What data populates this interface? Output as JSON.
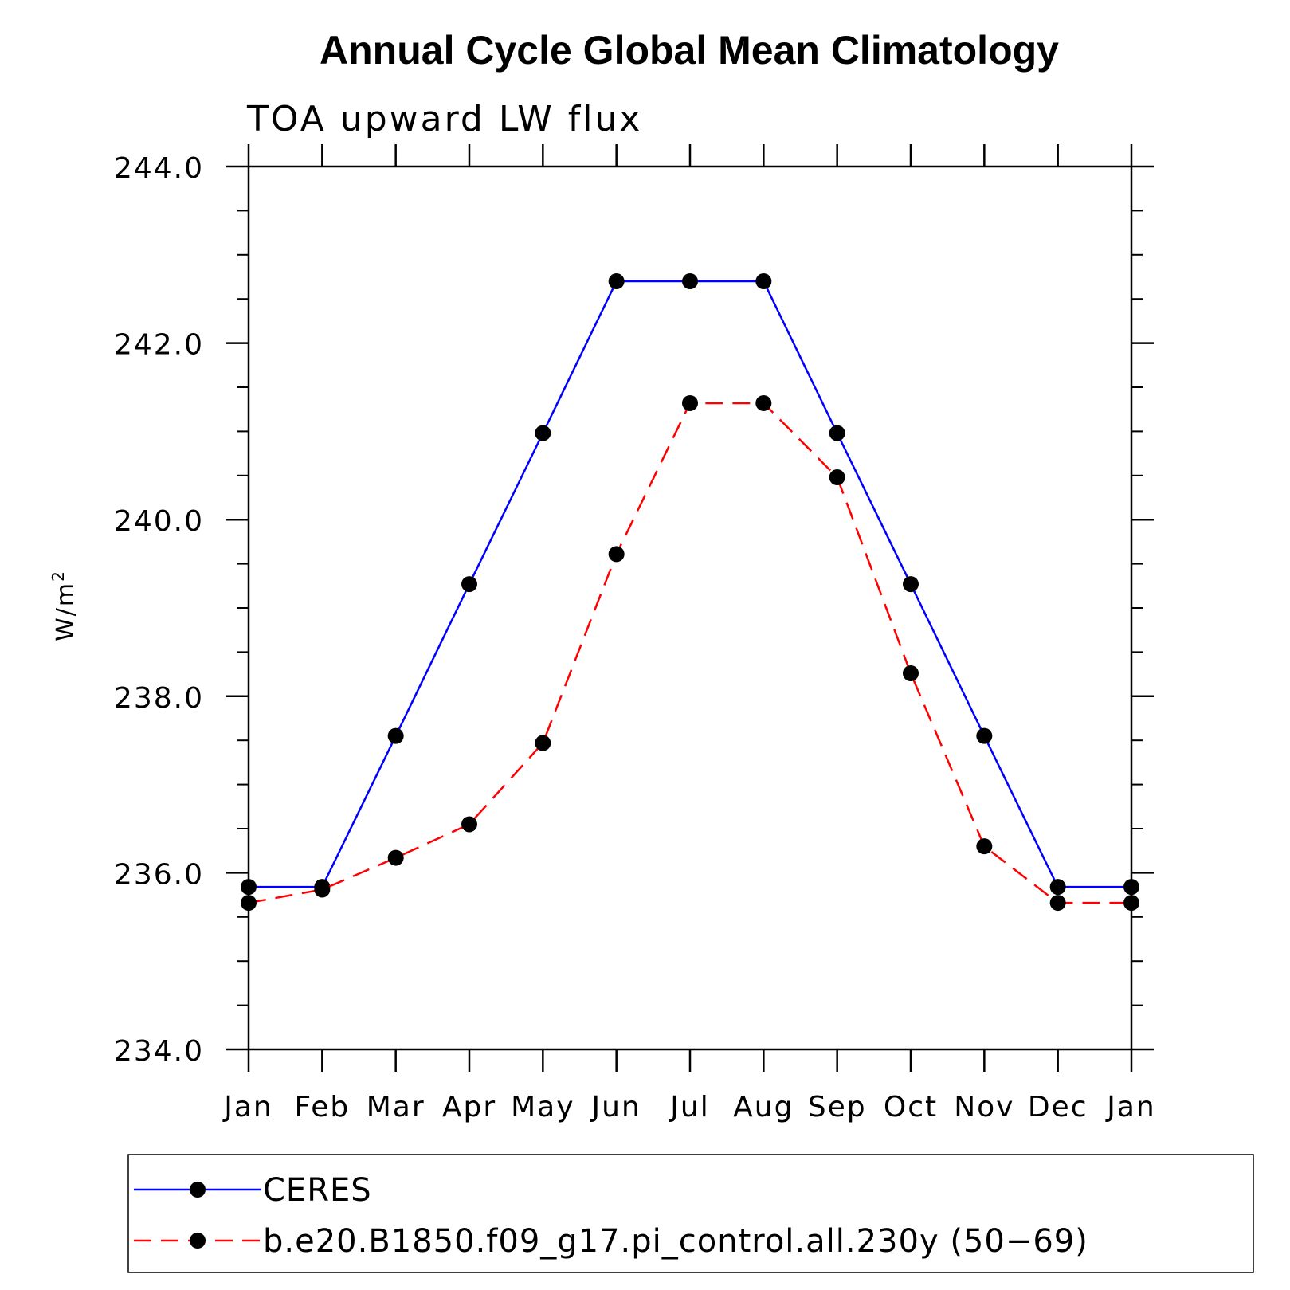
{
  "chart_data": {
    "type": "line",
    "title": "Annual Cycle Global Mean Climatology",
    "subtitle": "TOA upward LW flux",
    "ylabel": "W/m",
    "ylabel_sup": "2",
    "xlabel": "",
    "categories": [
      "Jan",
      "Feb",
      "Mar",
      "Apr",
      "May",
      "Jun",
      "Jul",
      "Aug",
      "Sep",
      "Oct",
      "Nov",
      "Dec",
      "Jan"
    ],
    "ylim": [
      234.0,
      244.0
    ],
    "y_ticks": [
      "234.0",
      "236.0",
      "238.0",
      "240.0",
      "242.0",
      "244.0"
    ],
    "grid": false,
    "legend_position": "bottom",
    "series": [
      {
        "name": "CERES",
        "color": "#0000ff",
        "style": "solid",
        "values": [
          235.84,
          235.84,
          237.55,
          239.27,
          240.98,
          242.7,
          242.7,
          242.7,
          240.98,
          239.27,
          237.55,
          235.84,
          235.84
        ]
      },
      {
        "name": "b.e20.B1850.f09_g17.pi_control.all.230y (50−69)",
        "color": "#ff0000",
        "style": "dashed",
        "values": [
          235.66,
          235.81,
          236.17,
          236.55,
          237.47,
          239.61,
          241.32,
          241.32,
          240.48,
          238.26,
          236.3,
          235.66,
          235.66
        ]
      }
    ]
  }
}
